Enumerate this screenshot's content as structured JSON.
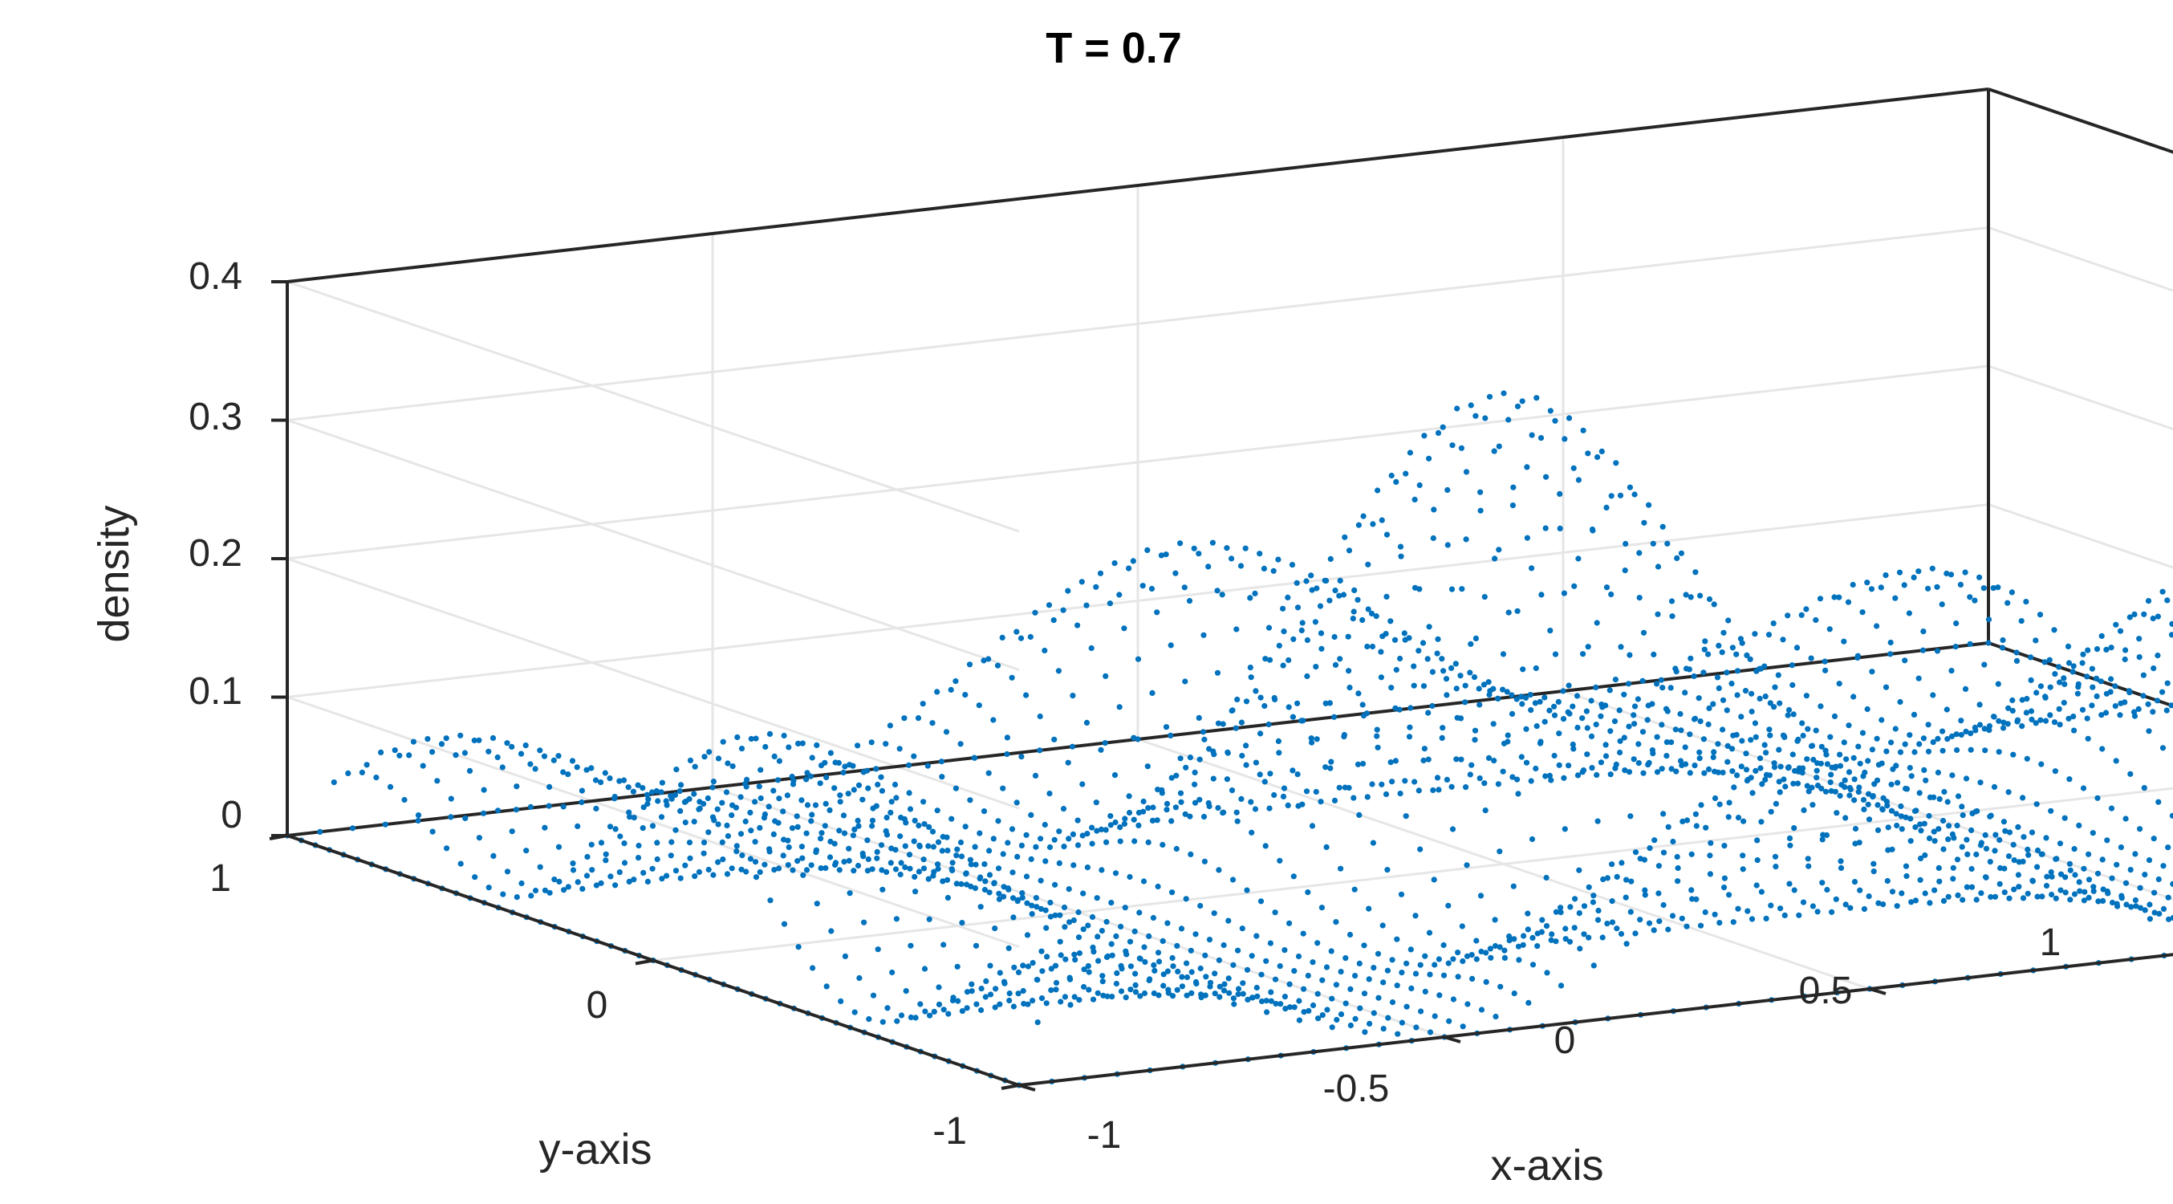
{
  "chart_data": {
    "type": "scatter3d",
    "title": "T = 0.7",
    "xlabel": "x-axis",
    "ylabel": "y-axis",
    "zlabel": "density",
    "xlim": [
      -1,
      1
    ],
    "ylim": [
      -1,
      1
    ],
    "zlim": [
      0,
      0.4
    ],
    "x_ticks": [
      "-1",
      "-0.5",
      "0",
      "0.5",
      "1"
    ],
    "y_ticks": [
      "-1",
      "0",
      "1"
    ],
    "z_ticks": [
      "0",
      "0.1",
      "0.2",
      "0.3",
      "0.4"
    ],
    "grid": true,
    "marker_color": "#0072BD",
    "peaks": [
      {
        "x": -0.5,
        "y": 0.5,
        "z": 0.33
      },
      {
        "x": 0.5,
        "y": 0.5,
        "z": 0.33
      },
      {
        "x": -0.5,
        "y": -0.5,
        "z": 0.33
      },
      {
        "x": 0.5,
        "y": -0.5,
        "z": 0.33
      }
    ],
    "center_value": 0.02
  }
}
